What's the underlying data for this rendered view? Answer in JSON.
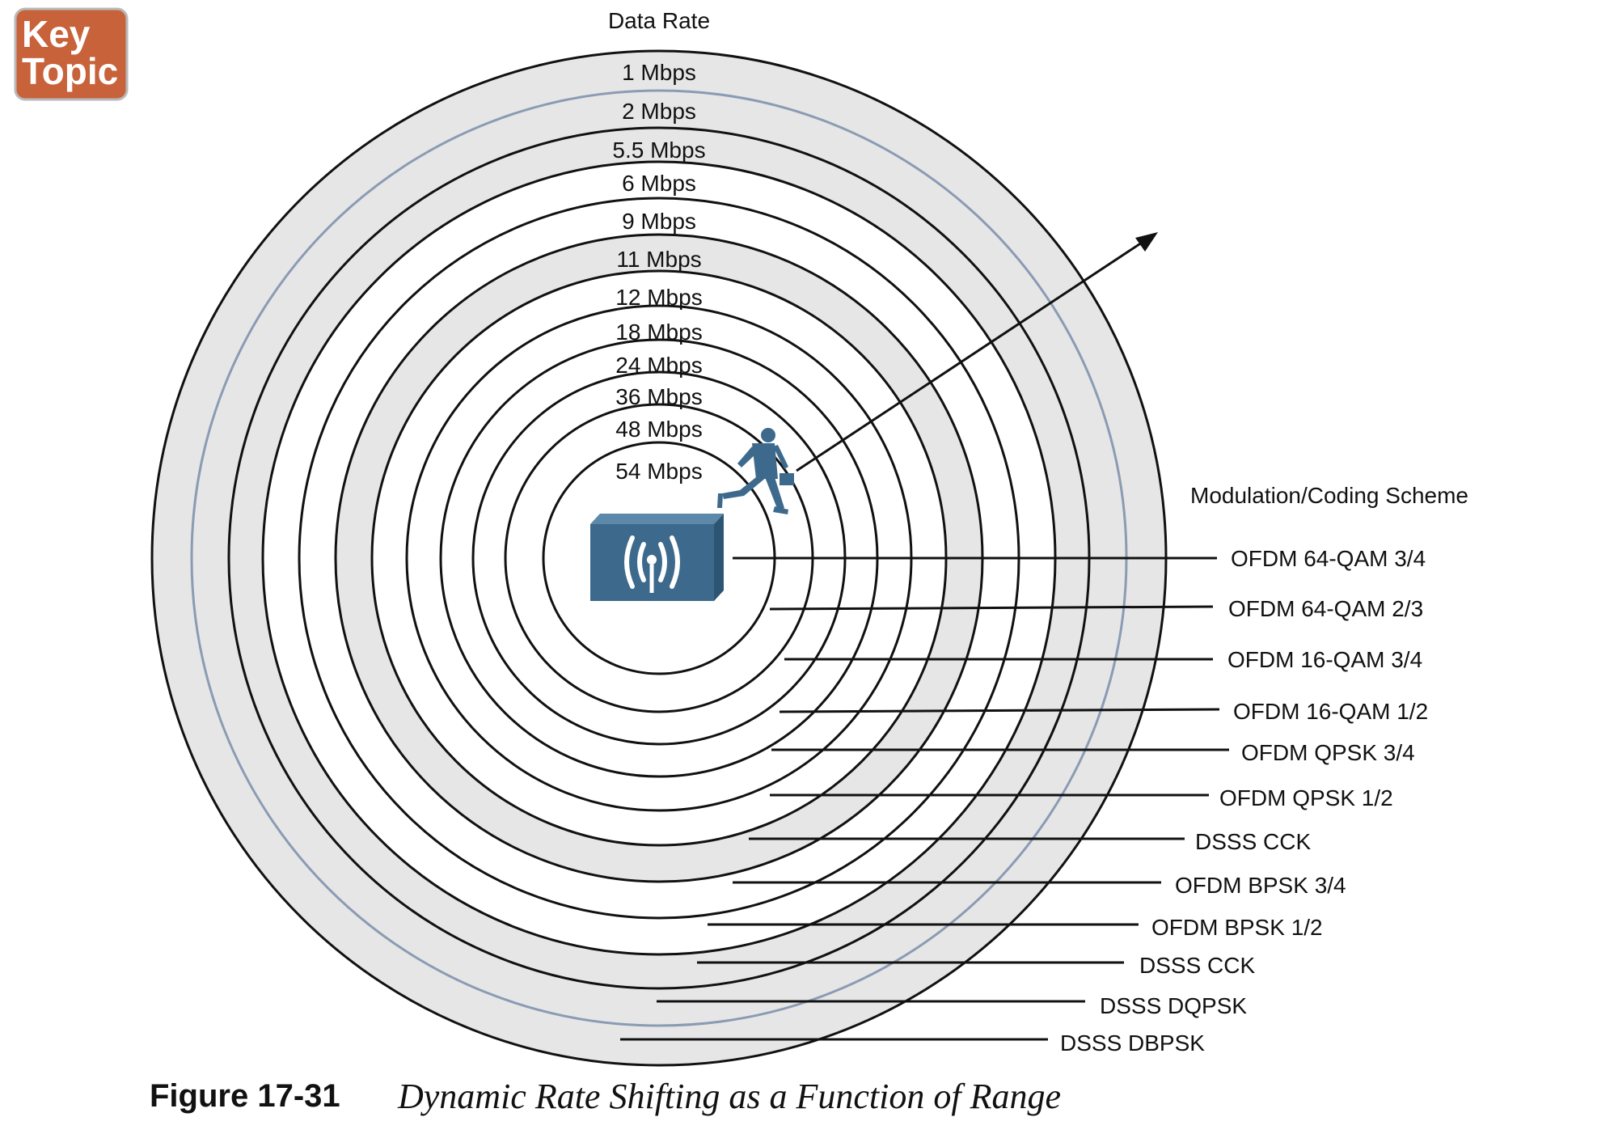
{
  "badge": {
    "line1": "Key",
    "line2": "Topic"
  },
  "headings": {
    "data_rate": "Data Rate",
    "modulation": "Modulation/Coding Scheme"
  },
  "rates": [
    "1 Mbps",
    "2 Mbps",
    "5.5 Mbps",
    "6 Mbps",
    "9 Mbps",
    "11 Mbps",
    "12 Mbps",
    "18 Mbps",
    "24 Mbps",
    "36 Mbps",
    "48 Mbps",
    "54 Mbps"
  ],
  "schemes": [
    "OFDM 64-QAM 3/4",
    "OFDM 64-QAM 2/3",
    "OFDM 16-QAM 3/4",
    "OFDM 16-QAM 1/2",
    "OFDM QPSK 3/4",
    "OFDM QPSK 1/2",
    "DSSS CCK",
    "OFDM BPSK 3/4",
    "OFDM BPSK 1/2",
    "DSSS CCK",
    "DSSS DQPSK",
    "DSSS DBPSK"
  ],
  "caption": {
    "number": "Figure 17-31",
    "title": "Dynamic Rate Shifting as a Function of Range"
  },
  "colors": {
    "badge": "#c8623a",
    "band_gray": "#e6e6e6",
    "blue_ring": "#8a9bb3",
    "device": "#3d6a8c",
    "ink": "#111111"
  }
}
